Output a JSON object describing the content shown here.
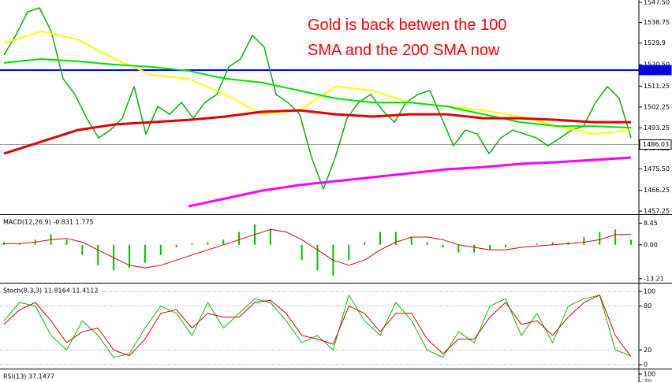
{
  "chart_data": [
    {
      "type": "line",
      "annotation": [
        "Gold is back betwen the 100",
        "SMA and the 200 SMA now"
      ],
      "ylim": [
        1455.9,
        1548.5
      ],
      "yticks": [
        {
          "value": 1547.5,
          "label": "1547.50"
        },
        1538.75,
        1529.9,
        {
          "value": 1520.5,
          "label": "1520.50"
        },
        1511.25,
        1502.25,
        1493.25,
        1484.25,
        {
          "value": 1475.5,
          "label": "1475.50"
        },
        1466.25,
        1457.25
      ],
      "levels": [
        1518.21,
        1486.03
      ],
      "level_colors": [
        "#0000ff",
        "#808080"
      ],
      "series": [
        {
          "color": "#00b400",
          "width": 1.5,
          "values": [
            1524.7,
            1533.2,
            1543.4,
            1545.1,
            1534.9,
            1514.5,
            1507.7,
            1497.4,
            1488.9,
            1492.3,
            1497.4,
            1511.1,
            1490.6,
            1502.5,
            1499.1,
            1504.2,
            1497.4,
            1504.2,
            1507.7,
            1519.6,
            1523.0,
            1533.2,
            1528.1,
            1507.7,
            1504.2,
            1499.1,
            1480.4,
            1466.8,
            1480.4,
            1497.4,
            1504.2,
            1507.7,
            1500.8,
            1495.7,
            1504.2,
            1507.7,
            1509.4,
            1497.4,
            1485.5,
            1492.3,
            1490.6,
            1482.1,
            1488.9,
            1492.3,
            1490.6,
            1488.9,
            1485.5,
            1488.9,
            1492.3,
            1494.0,
            1504.2,
            1511.1,
            1506.0,
            1488.9
          ]
        },
        {
          "color": "#ffff00",
          "width": 2,
          "values": [
            1529.8,
            1534.9,
            1531.5,
            1523.0,
            1516.2,
            1514.5,
            1507.6,
            1499.1,
            1500.8,
            1511.1,
            1509.4,
            1504.2,
            1502.5,
            1500.8,
            1498.1,
            1494.0,
            1490.6,
            1492.3
          ]
        },
        {
          "color": "#00e000",
          "width": 2,
          "values": [
            1521.3,
            1523.0,
            1522.0,
            1520.6,
            1519.6,
            1517.9,
            1514.5,
            1512.8,
            1509.4,
            1505.9,
            1504.2,
            1504.2,
            1502.5,
            1499.1,
            1495.7,
            1494.0,
            1494.0,
            1493.3
          ]
        },
        {
          "color": "#e00000",
          "width": 3,
          "values": [
            1482.1,
            1487.2,
            1492.3,
            1494.7,
            1495.7,
            1496.7,
            1498.1,
            1500.2,
            1500.8,
            1499.1,
            1498.1,
            1499.1,
            1499.1,
            1497.4,
            1497.4,
            1496.7,
            1495.7,
            1495.7
          ]
        },
        {
          "color": "#ff00ff",
          "width": 3,
          "values": [
            null,
            null,
            null,
            null,
            null,
            1459.3,
            1462.7,
            1466.1,
            1468.5,
            1470.2,
            1471.9,
            1473.6,
            1475.3,
            1476.3,
            1477.7,
            1478.4,
            1479.4,
            1480.4
          ]
        }
      ]
    },
    {
      "type": "macd",
      "title": "MACD(12,26,9) -0.831 1.775",
      "ylim": [
        -14.5,
        11.3
      ],
      "yticks": [
        8.45,
        {
          "value": 0,
          "label": "0.00"
        },
        -13.21
      ],
      "series": [
        {
          "kind": "bar",
          "color": "#00c000",
          "values": [
            1,
            0.5,
            2,
            4,
            2,
            -4,
            -8,
            -10,
            -9,
            -7,
            -4,
            -1,
            0.5,
            1,
            2,
            5,
            8,
            6,
            0,
            -6,
            -10,
            -12,
            -6,
            1,
            5,
            5,
            3,
            1,
            -1,
            -3,
            -3,
            -2,
            -1,
            0,
            0.5,
            1,
            1,
            3,
            5,
            6,
            2
          ]
        },
        {
          "kind": "line",
          "color": "#e00000",
          "width": 1,
          "values": [
            0.5,
            0.5,
            1,
            2,
            2.5,
            1,
            -2,
            -5,
            -8,
            -9,
            -8,
            -6,
            -4,
            -2,
            0,
            2,
            4,
            6,
            5,
            2,
            -2,
            -6,
            -8,
            -6,
            -2,
            1,
            3,
            3,
            2,
            0,
            -1,
            -2,
            -2,
            -1,
            -0.5,
            0,
            0.5,
            1,
            2,
            4,
            4
          ]
        }
      ]
    },
    {
      "type": "line",
      "title": "Stoch(8,3,3) 11.8164 11.4112",
      "ylim": [
        -4.3,
        109.7
      ],
      "yticks": [
        100,
        80,
        20,
        0
      ],
      "grid": "dotted",
      "series": [
        {
          "color": "#00c000",
          "width": 1,
          "values": [
            60,
            85,
            80,
            40,
            20,
            60,
            40,
            10,
            15,
            50,
            80,
            70,
            40,
            85,
            50,
            70,
            90,
            85,
            60,
            30,
            40,
            20,
            95,
            60,
            40,
            85,
            60,
            20,
            10,
            45,
            30,
            80,
            90,
            40,
            70,
            30,
            80,
            90,
            95,
            20,
            12
          ]
        },
        {
          "color": "#e00000",
          "width": 1,
          "values": [
            55,
            75,
            85,
            60,
            30,
            45,
            50,
            20,
            12,
            35,
            70,
            75,
            50,
            70,
            65,
            65,
            85,
            88,
            70,
            40,
            35,
            28,
            80,
            70,
            45,
            70,
            70,
            35,
            15,
            35,
            35,
            65,
            85,
            55,
            60,
            40,
            65,
            85,
            95,
            40,
            11
          ]
        }
      ]
    },
    {
      "type": "line",
      "title": "RSI(13) 37.1477",
      "ylim": [
        70,
        115
      ],
      "yticks": [
        100,
        70
      ],
      "series": []
    }
  ]
}
